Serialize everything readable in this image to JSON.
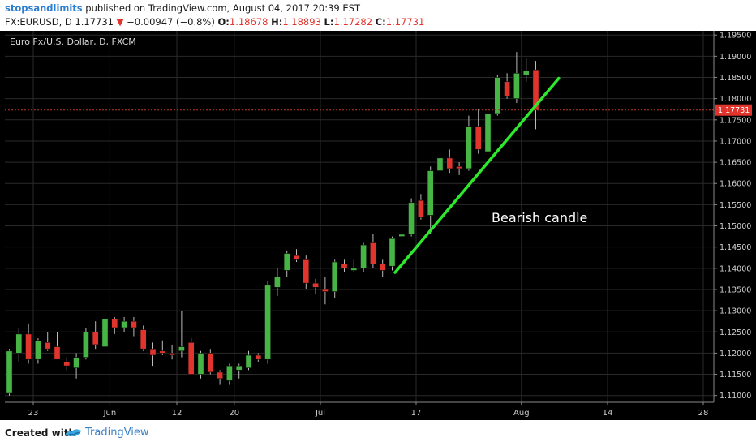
{
  "header": {
    "author": "stopsandlimits",
    "published": " published on TradingView.com, August 04, 2017 20:39 EST",
    "symbol": "FX:EURUSD, D",
    "last": "1.17731",
    "change": "−0.00947 (−0.8%)",
    "o_label": "O:",
    "o_value": "1.18678",
    "h_label": "H:",
    "h_value": "1.18893",
    "l_label": "L:",
    "l_value": "1.17282",
    "c_label": "C:",
    "c_value": "1.17731"
  },
  "footer": {
    "created_with": "Created with",
    "brand": "TradingView"
  },
  "colors": {
    "bull": "#46b546",
    "bear": "#e0342c",
    "trend": "#2ee82e",
    "price_line": "#c0392b",
    "background": "#000000"
  },
  "chart_data": {
    "type": "candlestick",
    "title": "Euro Fx/U.S. Dollar, D, FXCM",
    "annotation": "Bearish candle",
    "ylim": [
      1.1065,
      1.196
    ],
    "y_ticks": [
      "1.11000",
      "1.11500",
      "1.12000",
      "1.12500",
      "1.13000",
      "1.13500",
      "1.14000",
      "1.14500",
      "1.15000",
      "1.15500",
      "1.16000",
      "1.16500",
      "1.17000",
      "1.17500",
      "1.18000",
      "1.18500",
      "1.19000",
      "1.19500"
    ],
    "current_price": "1.17731",
    "x_ticks": [
      {
        "label": "23",
        "index": 2.5
      },
      {
        "label": "Jun",
        "index": 10.5
      },
      {
        "label": "12",
        "index": 17.5
      },
      {
        "label": "20",
        "index": 23.5
      },
      {
        "label": "Jul",
        "index": 32.5
      },
      {
        "label": "17",
        "index": 42.5
      },
      {
        "label": "Aug",
        "index": 53.5
      },
      {
        "label": "14",
        "index": 62.5
      },
      {
        "label": "28",
        "index": 72.5
      }
    ],
    "trendline": [
      {
        "index": 40.3,
        "price": 1.139
      },
      {
        "index": 57.4,
        "price": 1.1848
      }
    ],
    "candles": [
      {
        "o": 1.1105,
        "h": 1.121,
        "l": 1.11,
        "c": 1.1205
      },
      {
        "o": 1.12,
        "h": 1.126,
        "l": 1.118,
        "c": 1.1245
      },
      {
        "o": 1.1245,
        "h": 1.127,
        "l": 1.1175,
        "c": 1.1185
      },
      {
        "o": 1.1185,
        "h": 1.1235,
        "l": 1.1175,
        "c": 1.123
      },
      {
        "o": 1.1225,
        "h": 1.125,
        "l": 1.1205,
        "c": 1.121
      },
      {
        "o": 1.1215,
        "h": 1.125,
        "l": 1.1185,
        "c": 1.1185
      },
      {
        "o": 1.118,
        "h": 1.119,
        "l": 1.116,
        "c": 1.117
      },
      {
        "o": 1.1165,
        "h": 1.12,
        "l": 1.114,
        "c": 1.119
      },
      {
        "o": 1.119,
        "h": 1.126,
        "l": 1.1185,
        "c": 1.125
      },
      {
        "o": 1.125,
        "h": 1.1275,
        "l": 1.121,
        "c": 1.122
      },
      {
        "o": 1.1215,
        "h": 1.1285,
        "l": 1.12,
        "c": 1.128
      },
      {
        "o": 1.128,
        "h": 1.1285,
        "l": 1.1245,
        "c": 1.126
      },
      {
        "o": 1.126,
        "h": 1.1285,
        "l": 1.125,
        "c": 1.1275
      },
      {
        "o": 1.1275,
        "h": 1.1285,
        "l": 1.124,
        "c": 1.126
      },
      {
        "o": 1.1255,
        "h": 1.1265,
        "l": 1.1205,
        "c": 1.121
      },
      {
        "o": 1.121,
        "h": 1.1225,
        "l": 1.117,
        "c": 1.1195
      },
      {
        "o": 1.1205,
        "h": 1.123,
        "l": 1.1195,
        "c": 1.12
      },
      {
        "o": 1.12,
        "h": 1.122,
        "l": 1.1185,
        "c": 1.1195
      },
      {
        "o": 1.1205,
        "h": 1.13,
        "l": 1.119,
        "c": 1.1215
      },
      {
        "o": 1.1225,
        "h": 1.1235,
        "l": 1.115,
        "c": 1.115
      },
      {
        "o": 1.115,
        "h": 1.1205,
        "l": 1.114,
        "c": 1.12
      },
      {
        "o": 1.12,
        "h": 1.121,
        "l": 1.115,
        "c": 1.1155
      },
      {
        "o": 1.1155,
        "h": 1.116,
        "l": 1.1125,
        "c": 1.114
      },
      {
        "o": 1.1135,
        "h": 1.1175,
        "l": 1.1125,
        "c": 1.117
      },
      {
        "o": 1.116,
        "h": 1.1175,
        "l": 1.114,
        "c": 1.117
      },
      {
        "o": 1.1165,
        "h": 1.1205,
        "l": 1.116,
        "c": 1.1195
      },
      {
        "o": 1.1195,
        "h": 1.12,
        "l": 1.118,
        "c": 1.1185
      },
      {
        "o": 1.1185,
        "h": 1.137,
        "l": 1.1175,
        "c": 1.136
      },
      {
        "o": 1.1355,
        "h": 1.14,
        "l": 1.1335,
        "c": 1.138
      },
      {
        "o": 1.1395,
        "h": 1.144,
        "l": 1.138,
        "c": 1.1435
      },
      {
        "o": 1.143,
        "h": 1.1445,
        "l": 1.1415,
        "c": 1.142
      },
      {
        "o": 1.142,
        "h": 1.143,
        "l": 1.135,
        "c": 1.1365
      },
      {
        "o": 1.1365,
        "h": 1.1375,
        "l": 1.134,
        "c": 1.1355
      },
      {
        "o": 1.135,
        "h": 1.138,
        "l": 1.1315,
        "c": 1.1345
      },
      {
        "o": 1.1345,
        "h": 1.142,
        "l": 1.133,
        "c": 1.1415
      },
      {
        "o": 1.141,
        "h": 1.142,
        "l": 1.139,
        "c": 1.14
      },
      {
        "o": 1.1395,
        "h": 1.142,
        "l": 1.139,
        "c": 1.14
      },
      {
        "o": 1.14,
        "h": 1.146,
        "l": 1.139,
        "c": 1.1455
      },
      {
        "o": 1.146,
        "h": 1.148,
        "l": 1.14,
        "c": 1.141
      },
      {
        "o": 1.141,
        "h": 1.142,
        "l": 1.138,
        "c": 1.1395
      },
      {
        "o": 1.1405,
        "h": 1.1475,
        "l": 1.1395,
        "c": 1.147
      },
      {
        "o": 1.1475,
        "h": 1.148,
        "l": 1.1475,
        "c": 1.148
      },
      {
        "o": 1.148,
        "h": 1.1565,
        "l": 1.1475,
        "c": 1.1555
      },
      {
        "o": 1.156,
        "h": 1.1575,
        "l": 1.1515,
        "c": 1.152
      },
      {
        "o": 1.1525,
        "h": 1.164,
        "l": 1.148,
        "c": 1.163
      },
      {
        "o": 1.163,
        "h": 1.168,
        "l": 1.162,
        "c": 1.166
      },
      {
        "o": 1.166,
        "h": 1.168,
        "l": 1.1625,
        "c": 1.1635
      },
      {
        "o": 1.164,
        "h": 1.165,
        "l": 1.162,
        "c": 1.1635
      },
      {
        "o": 1.1635,
        "h": 1.176,
        "l": 1.163,
        "c": 1.1735
      },
      {
        "o": 1.1735,
        "h": 1.1775,
        "l": 1.167,
        "c": 1.168
      },
      {
        "o": 1.1675,
        "h": 1.1775,
        "l": 1.167,
        "c": 1.1765
      },
      {
        "o": 1.1765,
        "h": 1.1855,
        "l": 1.176,
        "c": 1.185
      },
      {
        "o": 1.184,
        "h": 1.186,
        "l": 1.18,
        "c": 1.1805
      },
      {
        "o": 1.18,
        "h": 1.191,
        "l": 1.179,
        "c": 1.186
      },
      {
        "o": 1.1855,
        "h": 1.1895,
        "l": 1.184,
        "c": 1.1865
      },
      {
        "o": 1.1868,
        "h": 1.1889,
        "l": 1.1728,
        "c": 1.1773
      }
    ]
  }
}
